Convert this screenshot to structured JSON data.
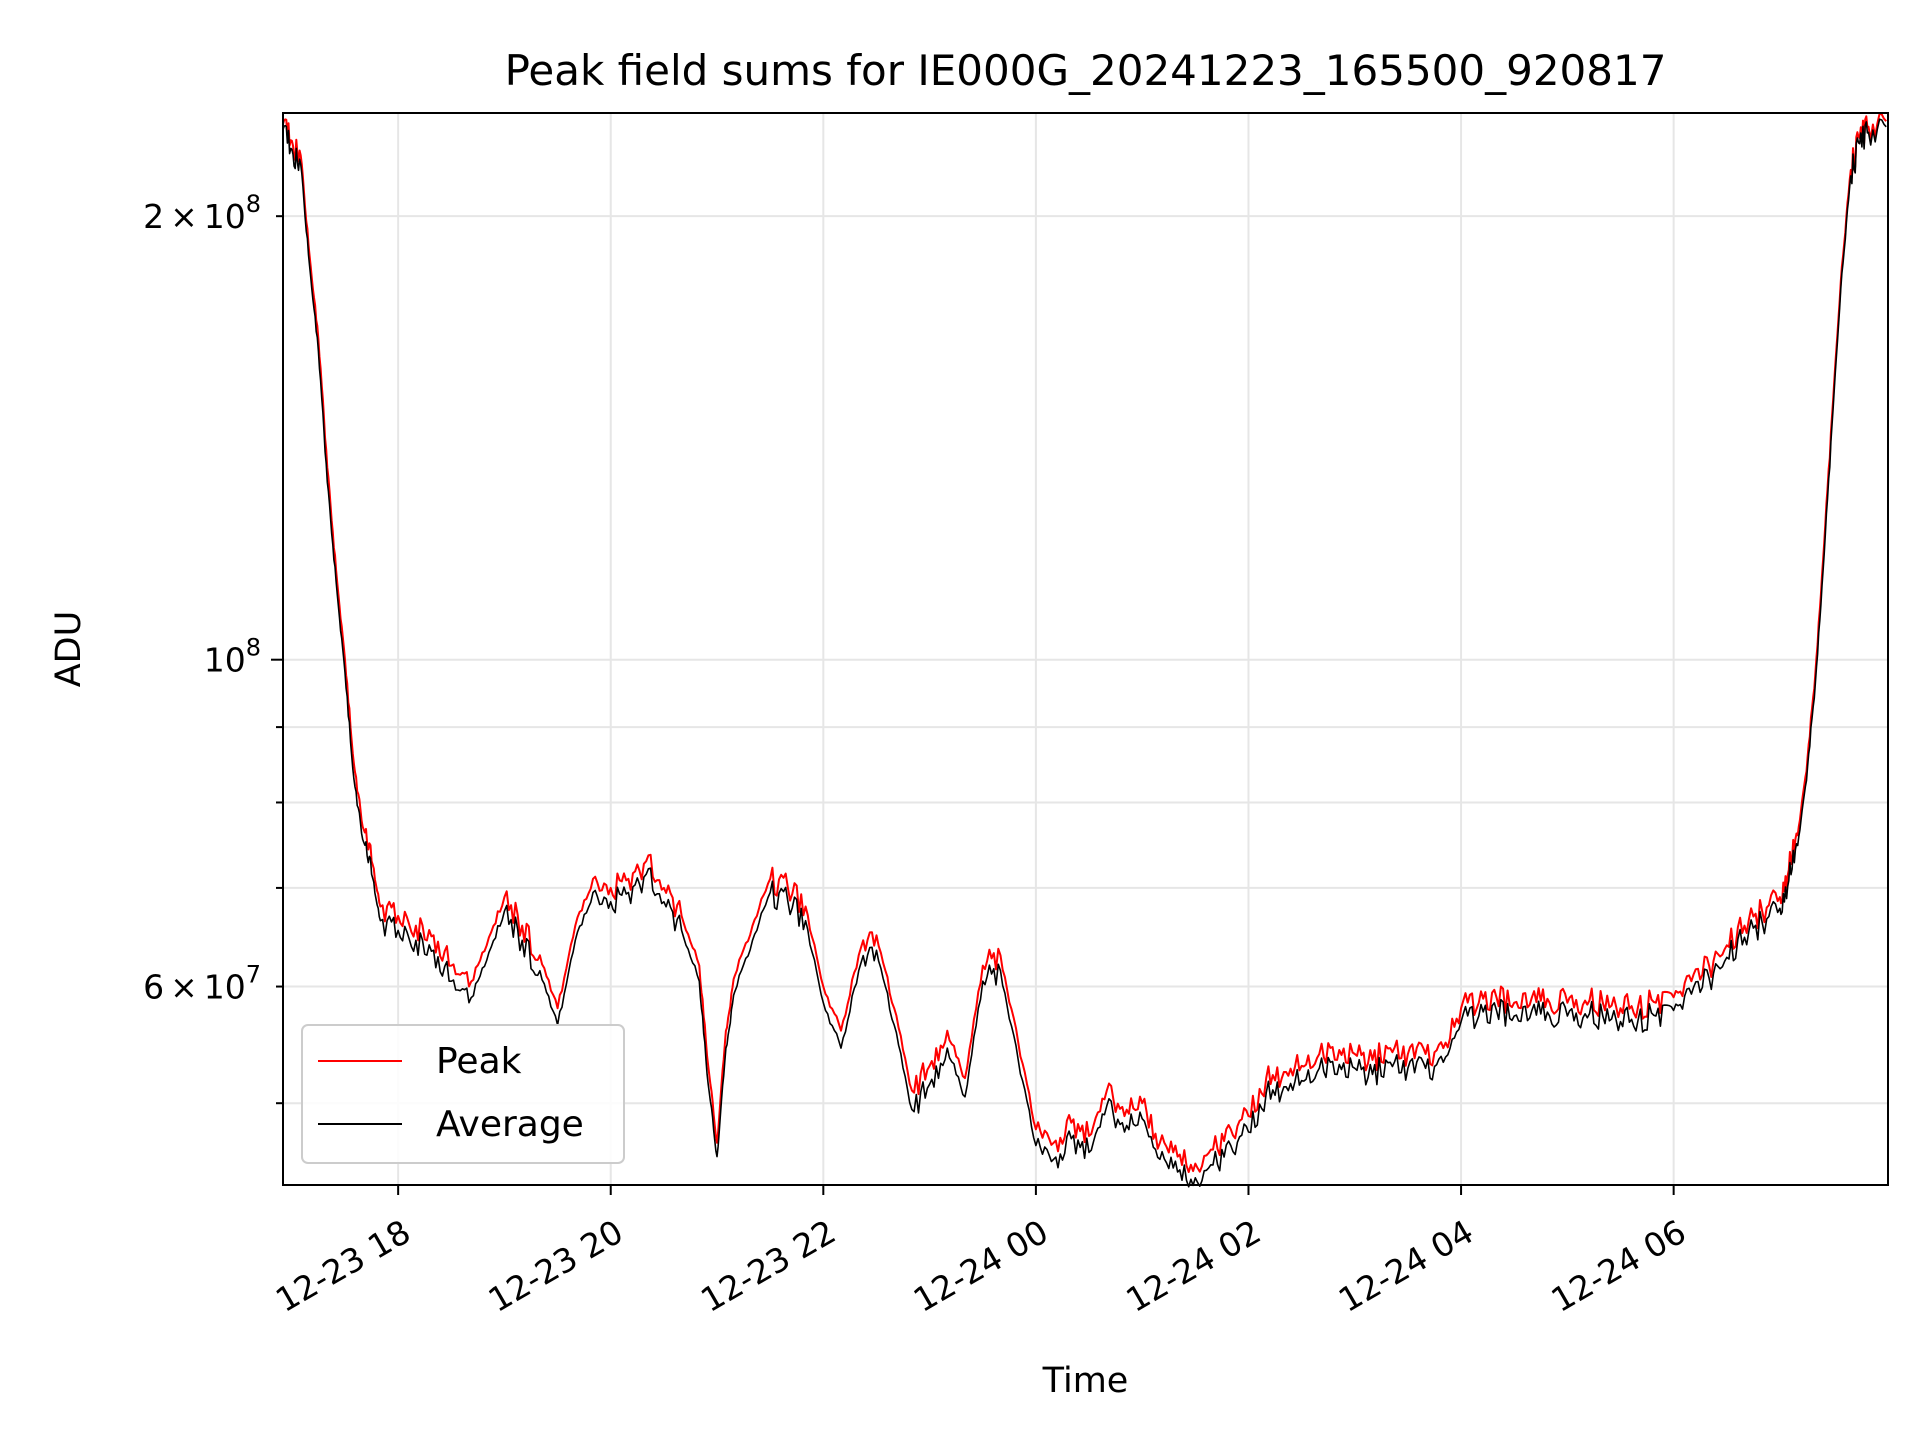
{
  "chart_data": {
    "type": "line",
    "title": "Peak field sums for IE000G_20241223_165500_920817",
    "xlabel": "Time",
    "ylabel": "ADU",
    "y_scale": "log",
    "ylim": [
      44000000,
      235000000
    ],
    "xlim": [
      "2024-12-23 16:55",
      "2024-12-24 08:01"
    ],
    "grid": true,
    "legend_position": "lower-left",
    "x_ticks": [
      {
        "t": "2024-12-23 18:00",
        "label": "12-23 18"
      },
      {
        "t": "2024-12-23 20:00",
        "label": "12-23 20"
      },
      {
        "t": "2024-12-23 22:00",
        "label": "12-23 22"
      },
      {
        "t": "2024-12-24 00:00",
        "label": "12-24 00"
      },
      {
        "t": "2024-12-24 02:00",
        "label": "12-24 02"
      },
      {
        "t": "2024-12-24 04:00",
        "label": "12-24 04"
      },
      {
        "t": "2024-12-24 06:00",
        "label": "12-24 06"
      }
    ],
    "y_ticks_major": [
      {
        "value": 100000000,
        "base": "10",
        "exp": "8"
      }
    ],
    "y_ticks_minor": [
      {
        "value": 60000000,
        "mant": "6",
        "base": "10",
        "exp": "7"
      },
      {
        "value": 200000000,
        "mant": "2",
        "base": "10",
        "exp": "8"
      }
    ],
    "y_ticks_minor_unlabeled": [
      50000000,
      70000000,
      80000000,
      90000000
    ],
    "series": [
      {
        "name": "Peak",
        "color": "#ff0000",
        "points": [
          [
            "2024-12-23 16:55",
            231000000
          ],
          [
            "2024-12-23 17:00",
            225000000
          ],
          [
            "2024-12-23 17:05",
            220000000
          ],
          [
            "2024-12-23 17:10",
            188000000
          ],
          [
            "2024-12-23 17:15",
            165000000
          ],
          [
            "2024-12-23 17:20",
            135000000
          ],
          [
            "2024-12-23 17:25",
            115000000
          ],
          [
            "2024-12-23 17:30",
            100000000
          ],
          [
            "2024-12-23 17:35",
            85000000
          ],
          [
            "2024-12-23 17:40",
            77000000
          ],
          [
            "2024-12-23 17:45",
            73000000
          ],
          [
            "2024-12-23 17:50",
            68000000
          ],
          [
            "2024-12-23 18:00",
            67000000
          ],
          [
            "2024-12-23 18:10",
            66000000
          ],
          [
            "2024-12-23 18:20",
            65000000
          ],
          [
            "2024-12-23 18:30",
            62000000
          ],
          [
            "2024-12-23 18:40",
            60000000
          ],
          [
            "2024-12-23 18:50",
            64000000
          ],
          [
            "2024-12-23 19:00",
            69000000
          ],
          [
            "2024-12-23 19:10",
            66000000
          ],
          [
            "2024-12-23 19:20",
            63000000
          ],
          [
            "2024-12-23 19:30",
            58000000
          ],
          [
            "2024-12-23 19:40",
            66000000
          ],
          [
            "2024-12-23 19:50",
            71000000
          ],
          [
            "2024-12-23 20:00",
            70000000
          ],
          [
            "2024-12-23 20:10",
            71000000
          ],
          [
            "2024-12-23 20:20",
            73000000
          ],
          [
            "2024-12-23 20:30",
            70000000
          ],
          [
            "2024-12-23 20:40",
            67000000
          ],
          [
            "2024-12-23 20:50",
            62000000
          ],
          [
            "2024-12-23 20:55",
            53000000
          ],
          [
            "2024-12-23 21:00",
            47000000
          ],
          [
            "2024-12-23 21:05",
            56000000
          ],
          [
            "2024-12-23 21:10",
            61000000
          ],
          [
            "2024-12-23 21:20",
            66000000
          ],
          [
            "2024-12-23 21:30",
            71000000
          ],
          [
            "2024-12-23 21:40",
            70000000
          ],
          [
            "2024-12-23 21:50",
            68000000
          ],
          [
            "2024-12-23 22:00",
            60000000
          ],
          [
            "2024-12-23 22:10",
            56000000
          ],
          [
            "2024-12-23 22:20",
            63000000
          ],
          [
            "2024-12-23 22:30",
            65000000
          ],
          [
            "2024-12-23 22:40",
            58000000
          ],
          [
            "2024-12-23 22:50",
            51000000
          ],
          [
            "2024-12-23 23:00",
            53000000
          ],
          [
            "2024-12-23 23:10",
            56000000
          ],
          [
            "2024-12-23 23:20",
            52000000
          ],
          [
            "2024-12-23 23:30",
            62000000
          ],
          [
            "2024-12-23 23:40",
            63000000
          ],
          [
            "2024-12-23 23:50",
            55000000
          ],
          [
            "2024-12-24 00:00",
            48000000
          ],
          [
            "2024-12-24 00:10",
            47000000
          ],
          [
            "2024-12-24 00:20",
            48500000
          ],
          [
            "2024-12-24 00:30",
            47500000
          ],
          [
            "2024-12-24 00:40",
            51000000
          ],
          [
            "2024-12-24 00:50",
            49000000
          ],
          [
            "2024-12-24 01:00",
            50000000
          ],
          [
            "2024-12-24 01:10",
            47000000
          ],
          [
            "2024-12-24 01:20",
            46000000
          ],
          [
            "2024-12-24 01:30",
            45500000
          ],
          [
            "2024-12-24 01:40",
            46500000
          ],
          [
            "2024-12-24 01:50",
            48000000
          ],
          [
            "2024-12-24 02:00",
            49000000
          ],
          [
            "2024-12-24 02:10",
            52000000
          ],
          [
            "2024-12-24 02:20",
            52500000
          ],
          [
            "2024-12-24 02:30",
            53000000
          ],
          [
            "2024-12-24 02:40",
            54000000
          ],
          [
            "2024-12-24 02:50",
            53500000
          ],
          [
            "2024-12-24 03:00",
            54000000
          ],
          [
            "2024-12-24 03:10",
            53500000
          ],
          [
            "2024-12-24 03:20",
            54500000
          ],
          [
            "2024-12-24 03:30",
            54000000
          ],
          [
            "2024-12-24 03:40",
            54000000
          ],
          [
            "2024-12-24 03:50",
            54500000
          ],
          [
            "2024-12-24 04:00",
            58000000
          ],
          [
            "2024-12-24 04:10",
            58500000
          ],
          [
            "2024-12-24 04:20",
            59000000
          ],
          [
            "2024-12-24 04:30",
            58500000
          ],
          [
            "2024-12-24 04:40",
            59000000
          ],
          [
            "2024-12-24 04:50",
            58500000
          ],
          [
            "2024-12-24 05:00",
            58500000
          ],
          [
            "2024-12-24 05:10",
            58700000
          ],
          [
            "2024-12-24 05:20",
            58500000
          ],
          [
            "2024-12-24 05:30",
            58000000
          ],
          [
            "2024-12-24 05:40",
            58200000
          ],
          [
            "2024-12-24 05:50",
            58500000
          ],
          [
            "2024-12-24 06:00",
            59000000
          ],
          [
            "2024-12-24 06:10",
            60500000
          ],
          [
            "2024-12-24 06:20",
            62000000
          ],
          [
            "2024-12-24 06:30",
            64000000
          ],
          [
            "2024-12-24 06:40",
            66000000
          ],
          [
            "2024-12-24 06:50",
            67500000
          ],
          [
            "2024-12-24 07:00",
            69000000
          ],
          [
            "2024-12-24 07:05",
            72000000
          ],
          [
            "2024-12-24 07:10",
            76000000
          ],
          [
            "2024-12-24 07:15",
            84000000
          ],
          [
            "2024-12-24 07:20",
            98000000
          ],
          [
            "2024-12-24 07:25",
            120000000
          ],
          [
            "2024-12-24 07:30",
            150000000
          ],
          [
            "2024-12-24 07:35",
            185000000
          ],
          [
            "2024-12-24 07:40",
            215000000
          ],
          [
            "2024-12-24 07:45",
            226000000
          ],
          [
            "2024-12-24 07:50",
            230000000
          ],
          [
            "2024-12-24 08:00",
            232000000
          ]
        ]
      },
      {
        "name": "Average",
        "color": "#000000",
        "points": [
          [
            "2024-12-23 16:55",
            229000000
          ],
          [
            "2024-12-23 17:00",
            222000000
          ],
          [
            "2024-12-23 17:05",
            217000000
          ],
          [
            "2024-12-23 17:10",
            185000000
          ],
          [
            "2024-12-23 17:15",
            162000000
          ],
          [
            "2024-12-23 17:20",
            132000000
          ],
          [
            "2024-12-23 17:25",
            113000000
          ],
          [
            "2024-12-23 17:30",
            98000000
          ],
          [
            "2024-12-23 17:35",
            83000000
          ],
          [
            "2024-12-23 17:40",
            75500000
          ],
          [
            "2024-12-23 17:45",
            71500000
          ],
          [
            "2024-12-23 17:50",
            66500000
          ],
          [
            "2024-12-23 18:00",
            65500000
          ],
          [
            "2024-12-23 18:10",
            64500000
          ],
          [
            "2024-12-23 18:20",
            63500000
          ],
          [
            "2024-12-23 18:30",
            60500000
          ],
          [
            "2024-12-23 18:40",
            58500000
          ],
          [
            "2024-12-23 18:50",
            62500000
          ],
          [
            "2024-12-23 19:00",
            67500000
          ],
          [
            "2024-12-23 19:10",
            64500000
          ],
          [
            "2024-12-23 19:20",
            61500000
          ],
          [
            "2024-12-23 19:30",
            56500000
          ],
          [
            "2024-12-23 19:40",
            64500000
          ],
          [
            "2024-12-23 19:50",
            69500000
          ],
          [
            "2024-12-23 20:00",
            68500000
          ],
          [
            "2024-12-23 20:10",
            69500000
          ],
          [
            "2024-12-23 20:20",
            71500000
          ],
          [
            "2024-12-23 20:30",
            68500000
          ],
          [
            "2024-12-23 20:40",
            65500000
          ],
          [
            "2024-12-23 20:50",
            60500000
          ],
          [
            "2024-12-23 20:55",
            51500000
          ],
          [
            "2024-12-23 21:00",
            46000000
          ],
          [
            "2024-12-23 21:05",
            54500000
          ],
          [
            "2024-12-23 21:10",
            59500000
          ],
          [
            "2024-12-23 21:20",
            64500000
          ],
          [
            "2024-12-23 21:30",
            69500000
          ],
          [
            "2024-12-23 21:40",
            68500000
          ],
          [
            "2024-12-23 21:50",
            66500000
          ],
          [
            "2024-12-23 22:00",
            58500000
          ],
          [
            "2024-12-23 22:10",
            54500000
          ],
          [
            "2024-12-23 22:20",
            61500000
          ],
          [
            "2024-12-23 22:30",
            63500000
          ],
          [
            "2024-12-23 22:40",
            56500000
          ],
          [
            "2024-12-23 22:50",
            49500000
          ],
          [
            "2024-12-23 23:00",
            51500000
          ],
          [
            "2024-12-23 23:10",
            54500000
          ],
          [
            "2024-12-23 23:20",
            50500000
          ],
          [
            "2024-12-23 23:30",
            60500000
          ],
          [
            "2024-12-23 23:40",
            61500000
          ],
          [
            "2024-12-23 23:50",
            53500000
          ],
          [
            "2024-12-24 00:00",
            46800000
          ],
          [
            "2024-12-24 00:10",
            45800000
          ],
          [
            "2024-12-24 00:20",
            47300000
          ],
          [
            "2024-12-24 00:30",
            46300000
          ],
          [
            "2024-12-24 00:40",
            49800000
          ],
          [
            "2024-12-24 00:50",
            47800000
          ],
          [
            "2024-12-24 01:00",
            48800000
          ],
          [
            "2024-12-24 01:10",
            45800000
          ],
          [
            "2024-12-24 01:20",
            44900000
          ],
          [
            "2024-12-24 01:30",
            44500000
          ],
          [
            "2024-12-24 01:40",
            45400000
          ],
          [
            "2024-12-24 01:50",
            46800000
          ],
          [
            "2024-12-24 02:00",
            47800000
          ],
          [
            "2024-12-24 02:10",
            50800000
          ],
          [
            "2024-12-24 02:20",
            51300000
          ],
          [
            "2024-12-24 02:30",
            51800000
          ],
          [
            "2024-12-24 02:40",
            52800000
          ],
          [
            "2024-12-24 02:50",
            52300000
          ],
          [
            "2024-12-24 03:00",
            52800000
          ],
          [
            "2024-12-24 03:10",
            52300000
          ],
          [
            "2024-12-24 03:20",
            53300000
          ],
          [
            "2024-12-24 03:30",
            52800000
          ],
          [
            "2024-12-24 03:40",
            52800000
          ],
          [
            "2024-12-24 03:50",
            53300000
          ],
          [
            "2024-12-24 04:00",
            56800000
          ],
          [
            "2024-12-24 04:10",
            57300000
          ],
          [
            "2024-12-24 04:20",
            57800000
          ],
          [
            "2024-12-24 04:30",
            57300000
          ],
          [
            "2024-12-24 04:40",
            57800000
          ],
          [
            "2024-12-24 04:50",
            57300000
          ],
          [
            "2024-12-24 05:00",
            57300000
          ],
          [
            "2024-12-24 05:10",
            57500000
          ],
          [
            "2024-12-24 05:20",
            57300000
          ],
          [
            "2024-12-24 05:30",
            56800000
          ],
          [
            "2024-12-24 05:40",
            57000000
          ],
          [
            "2024-12-24 05:50",
            57300000
          ],
          [
            "2024-12-24 06:00",
            57800000
          ],
          [
            "2024-12-24 06:10",
            59300000
          ],
          [
            "2024-12-24 06:20",
            60800000
          ],
          [
            "2024-12-24 06:30",
            62800000
          ],
          [
            "2024-12-24 06:40",
            64800000
          ],
          [
            "2024-12-24 06:50",
            66300000
          ],
          [
            "2024-12-24 07:00",
            67800000
          ],
          [
            "2024-12-24 07:05",
            70800000
          ],
          [
            "2024-12-24 07:10",
            74800000
          ],
          [
            "2024-12-24 07:15",
            82800000
          ],
          [
            "2024-12-24 07:20",
            96500000
          ],
          [
            "2024-12-24 07:25",
            118000000
          ],
          [
            "2024-12-24 07:30",
            148000000
          ],
          [
            "2024-12-24 07:35",
            183000000
          ],
          [
            "2024-12-24 07:40",
            213000000
          ],
          [
            "2024-12-24 07:45",
            224000000
          ],
          [
            "2024-12-24 07:50",
            228000000
          ],
          [
            "2024-12-24 08:00",
            230000000
          ]
        ]
      }
    ]
  }
}
